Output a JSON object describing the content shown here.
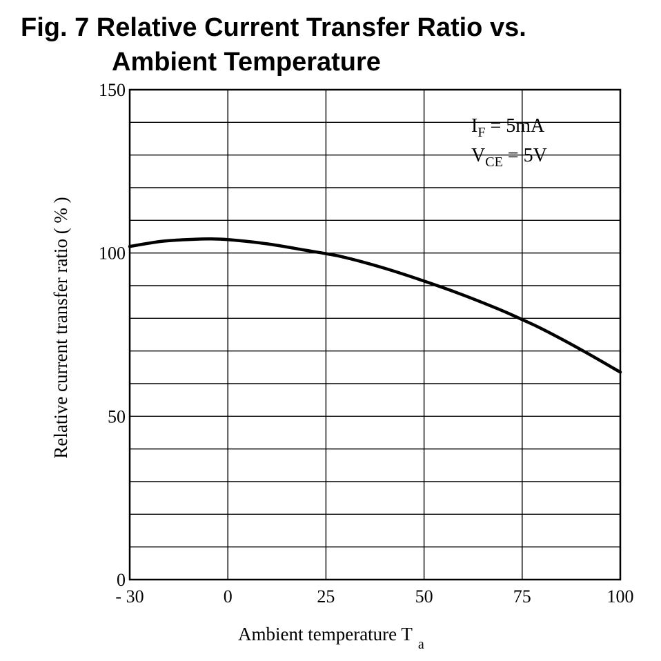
{
  "chart_data": {
    "type": "line",
    "title_line1": "Fig. 7 Relative Current Transfer Ratio vs.",
    "title_line2": "Ambient Temperature",
    "xlabel": "Ambient temperature T",
    "xlabel_sub": "a",
    "ylabel": "Relative current transfer ratio ( % )",
    "x_categories": [
      -30,
      0,
      25,
      50,
      75,
      100
    ],
    "x_tick_labels": [
      "- 30",
      "0",
      "25",
      "50",
      "75",
      "100"
    ],
    "y_ticks": [
      0,
      50,
      100,
      150
    ],
    "y_tick_labels": [
      "0",
      "50",
      "100",
      "150"
    ],
    "ylim": [
      0,
      150
    ],
    "y_minor_step": 10,
    "grid": true,
    "annotation": {
      "line1_main": "I",
      "line1_sub": "F",
      "line1_rest": " = 5mA",
      "line2_main": "V",
      "line2_sub": "CE",
      "line2_rest": " = 5V"
    },
    "series": [
      {
        "x": [
          -30,
          -20,
          -10,
          -5,
          0,
          10,
          20,
          25,
          30,
          40,
          50,
          60,
          70,
          75,
          80,
          90,
          100
        ],
        "y": [
          102,
          103.6,
          104.2,
          104.3,
          104.1,
          102.8,
          100.8,
          99.8,
          98.6,
          95.3,
          91.4,
          87.1,
          82.3,
          79.6,
          76.8,
          70.4,
          63.5
        ]
      }
    ]
  }
}
